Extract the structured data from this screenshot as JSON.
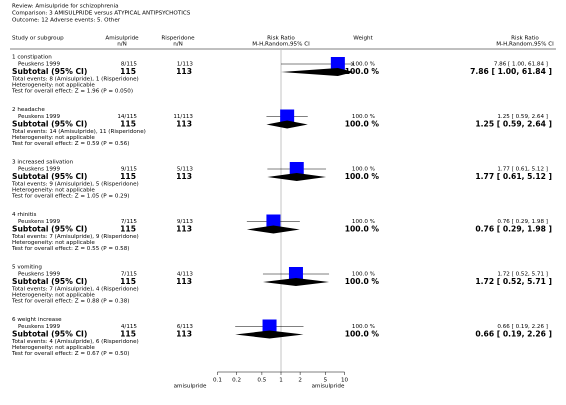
{
  "chart_data": {
    "type": "forest",
    "review": "Review:  Amisulpride for schizophrenia",
    "comparison": "Comparison:  3 AMISULPRIDE versus ATYPICAL ANTIPSYCHOTICS",
    "outcome": "Outcome:  12 Adverse events: 5. Other",
    "columns": {
      "study": "Study or subgroup",
      "exp": [
        "Amisulpride",
        "n/N"
      ],
      "ctrl": [
        "Risperidone",
        "n/N"
      ],
      "plot": [
        "Risk Ratio",
        "M-H,Random,95% CI"
      ],
      "weight": "Weight",
      "rr": [
        "Risk Ratio",
        "M-H,Random,95% CI"
      ]
    },
    "xlim": [
      0.07,
      14
    ],
    "xticks": [
      0.1,
      0.2,
      0.5,
      1,
      2,
      5,
      10
    ],
    "log_scale": true,
    "favours_left": "amisulpride",
    "favours_right": "amisulpride",
    "subtotal_label": "Subtotal (95% CI)",
    "heterogeneity": "Heterogeneity: not applicable",
    "square_color": "#0000ff",
    "diamond_color": "#000000",
    "groups": [
      {
        "title": "1 constipation",
        "study": "Peuskens 1999",
        "exp": "8/115",
        "ctrl": "1/113",
        "weight": "100.0 %",
        "rr": 7.86,
        "ci": [
          1.0,
          61.84
        ],
        "rr_label": "7.86 [ 1.00, 61.84 ]",
        "sub_exp": 115,
        "sub_ctrl": 113,
        "sub_weight": "100.0 %",
        "sub_rr": 7.86,
        "sub_ci": [
          1.0,
          61.84
        ],
        "sub_label": "7.86 [ 1.00, 61.84 ]",
        "events": "Total events: 8 (Amisulpride), 1 (Risperidone)",
        "test": "Test for overall effect: Z = 1.96 (P = 0.050)"
      },
      {
        "title": "2 headache",
        "study": "Peuskens 1999",
        "exp": "14/115",
        "ctrl": "11/113",
        "weight": "100.0 %",
        "rr": 1.25,
        "ci": [
          0.59,
          2.64
        ],
        "rr_label": "1.25 [ 0.59, 2.64 ]",
        "sub_exp": 115,
        "sub_ctrl": 113,
        "sub_weight": "100.0 %",
        "sub_rr": 1.25,
        "sub_ci": [
          0.59,
          2.64
        ],
        "sub_label": "1.25 [ 0.59, 2.64 ]",
        "events": "Total events: 14 (Amisulpride), 11 (Risperidone)",
        "test": "Test for overall effect: Z = 0.59 (P = 0.56)"
      },
      {
        "title": "3 increased salivation",
        "study": "Peuskens 1999",
        "exp": "9/115",
        "ctrl": "5/113",
        "weight": "100.0 %",
        "rr": 1.77,
        "ci": [
          0.61,
          5.12
        ],
        "rr_label": "1.77 [ 0.61, 5.12 ]",
        "sub_exp": 115,
        "sub_ctrl": 113,
        "sub_weight": "100.0 %",
        "sub_rr": 1.77,
        "sub_ci": [
          0.61,
          5.12
        ],
        "sub_label": "1.77 [ 0.61, 5.12 ]",
        "events": "Total events: 9 (Amisulpride), 5 (Risperidone)",
        "test": "Test for overall effect: Z = 1.05 (P = 0.29)"
      },
      {
        "title": "4 rhinitis",
        "study": "Peuskens 1999",
        "exp": "7/115",
        "ctrl": "9/113",
        "weight": "100.0 %",
        "rr": 0.76,
        "ci": [
          0.29,
          1.98
        ],
        "rr_label": "0.76 [ 0.29, 1.98 ]",
        "sub_exp": 115,
        "sub_ctrl": 113,
        "sub_weight": "100.0 %",
        "sub_rr": 0.76,
        "sub_ci": [
          0.29,
          1.98
        ],
        "sub_label": "0.76 [ 0.29, 1.98 ]",
        "events": "Total events: 7 (Amisulpride), 9 (Risperidone)",
        "test": "Test for overall effect: Z = 0.55 (P = 0.58)"
      },
      {
        "title": "5 vomiting",
        "study": "Peuskens 1999",
        "exp": "7/115",
        "ctrl": "4/113",
        "weight": "100.0 %",
        "rr": 1.72,
        "ci": [
          0.52,
          5.71
        ],
        "rr_label": "1.72 [ 0.52, 5.71 ]",
        "sub_exp": 115,
        "sub_ctrl": 113,
        "sub_weight": "100.0 %",
        "sub_rr": 1.72,
        "sub_ci": [
          0.52,
          5.71
        ],
        "sub_label": "1.72 [ 0.52, 5.71 ]",
        "events": "Total events: 7 (Amisulpride), 4 (Risperidone)",
        "test": "Test for overall effect: Z = 0.88 (P = 0.38)"
      },
      {
        "title": "6 weight increase",
        "study": "Peuskens 1999",
        "exp": "4/115",
        "ctrl": "6/113",
        "weight": "100.0 %",
        "rr": 0.66,
        "ci": [
          0.19,
          2.26
        ],
        "rr_label": "0.66 [ 0.19, 2.26 ]",
        "sub_exp": 115,
        "sub_ctrl": 113,
        "sub_weight": "100.0 %",
        "sub_rr": 0.66,
        "sub_ci": [
          0.19,
          2.26
        ],
        "sub_label": "0.66 [ 0.19, 2.26 ]",
        "events": "Total events: 4 (Amisulpride), 6 (Risperidone)",
        "test": "Test for overall effect: Z = 0.67 (P = 0.50)"
      }
    ]
  }
}
